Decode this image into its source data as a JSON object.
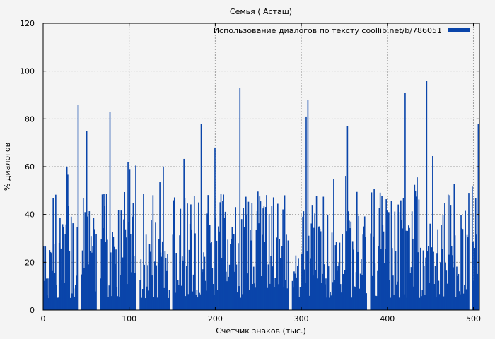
{
  "chart_data": {
    "type": "bar",
    "title": "Семья ( Асташ)",
    "xlabel": "Счетчик знаков (тыс.)",
    "ylabel": "% диалогов",
    "xlim": [
      0,
      507
    ],
    "ylim": [
      0,
      120
    ],
    "x_ticks": [
      0,
      100,
      200,
      300,
      400,
      500
    ],
    "y_ticks": [
      0,
      20,
      40,
      60,
      80,
      100,
      120
    ],
    "grid": true,
    "legend_position": "top-right",
    "series": [
      {
        "name": "Использование диалогов по тексту coollib.net/b/786051",
        "color": "#0a45aa",
        "bin_width": 1,
        "gaps": [
          [
            41,
            43
          ],
          [
            62,
            65
          ],
          [
            108,
            111
          ],
          [
            147,
            149
          ],
          [
            285,
            288
          ],
          [
            376,
            379
          ],
          [
            495,
            497
          ]
        ],
        "peaks": [
          {
            "x": 40,
            "y": 86
          },
          {
            "x": 50,
            "y": 75
          },
          {
            "x": 77,
            "y": 83
          },
          {
            "x": 98,
            "y": 62
          },
          {
            "x": 183,
            "y": 78
          },
          {
            "x": 199,
            "y": 68
          },
          {
            "x": 228,
            "y": 93
          },
          {
            "x": 305,
            "y": 81
          },
          {
            "x": 307,
            "y": 88
          },
          {
            "x": 353,
            "y": 77
          },
          {
            "x": 420,
            "y": 91
          },
          {
            "x": 445,
            "y": 96
          },
          {
            "x": 505,
            "y": 78
          }
        ],
        "base_range": [
          5,
          50
        ],
        "note_values": "dense per-thousand-character bins; typical values 5–60%"
      }
    ]
  }
}
